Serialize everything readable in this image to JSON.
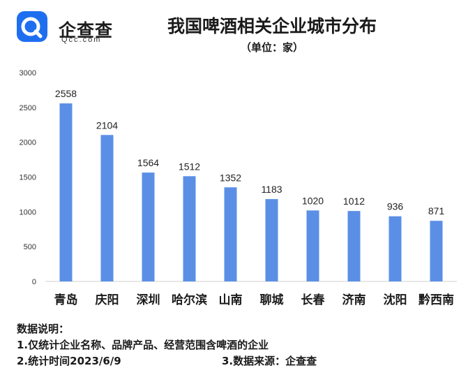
{
  "logo": {
    "name": "企查查",
    "sub": "Qcc.com",
    "icon": "qcc-logo-icon"
  },
  "chart_data": {
    "type": "bar",
    "title": "我国啤酒相关企业城市分布",
    "subtitle": "（单位：家）",
    "categories": [
      "青岛",
      "庆阳",
      "深圳",
      "哈尔滨",
      "山南",
      "聊城",
      "长春",
      "济南",
      "沈阳",
      "黔西南"
    ],
    "values": [
      2558,
      2104,
      1564,
      1512,
      1352,
      1183,
      1020,
      1012,
      936,
      871
    ],
    "value_labels": [
      "2558",
      "2104",
      "1564",
      "1512",
      "1352",
      "1183",
      "1020",
      "1012",
      "936",
      "871"
    ],
    "ylim": [
      0,
      3000
    ],
    "yticks": [
      "0",
      "500",
      "1000",
      "1500",
      "2000",
      "2500",
      "3000"
    ],
    "ytick_values": [
      0,
      500,
      1000,
      1500,
      2000,
      2500,
      3000
    ],
    "grid": false,
    "bar_color": "#5b8fe6",
    "xlabel": "",
    "ylabel": ""
  },
  "notes": {
    "heading": "数据说明：",
    "line1": "1.仅统计企业名称、品牌产品、经营范围含啤酒的企业",
    "line2": "2.统计时间2023/6/9",
    "line3": "3.数据来源：企查查"
  }
}
